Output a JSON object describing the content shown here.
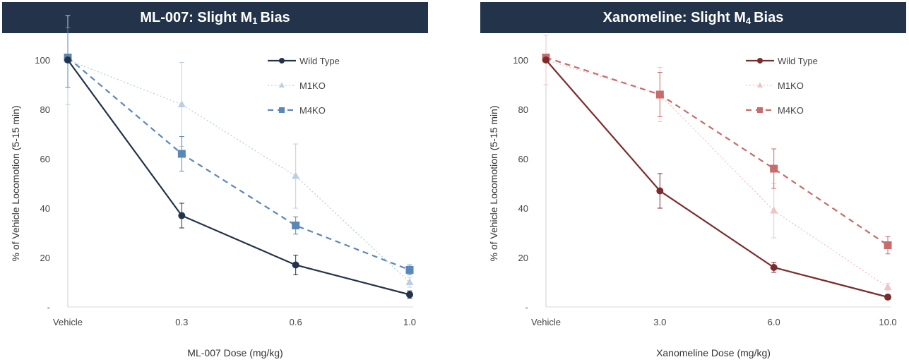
{
  "chart_data": [
    {
      "type": "line",
      "title_main": "ML-007: Slight M",
      "title_sub": "1",
      "title_tail": "Bias",
      "xlabel": "ML-007 Dose (mg/kg)",
      "ylabel": "% of Vehicle Locomotion (5-15 min)",
      "categories": [
        "Vehicle",
        "0.3",
        "0.6",
        "1.0"
      ],
      "ylim": [
        0,
        100
      ],
      "yticks": [
        "-",
        "20",
        "40",
        "60",
        "80",
        "100"
      ],
      "series": [
        {
          "name": "Wild Type",
          "values": [
            100,
            37,
            17,
            5
          ],
          "errors": [
            0,
            5,
            4,
            1.5
          ],
          "color": "#22334a",
          "dash": "",
          "width": 2.2,
          "marker": "circle"
        },
        {
          "name": "M1KO",
          "values": [
            100,
            82,
            53,
            10
          ],
          "errors": [
            18,
            17,
            13,
            2
          ],
          "color": "#bccfe2",
          "dash": "2,3",
          "width": 1.3,
          "marker": "triangle"
        },
        {
          "name": "M4KO",
          "values": [
            101,
            62,
            33,
            15
          ],
          "errors": [
            12,
            7,
            3.5,
            2
          ],
          "color": "#5b86b8",
          "dash": "8,6",
          "width": 2.2,
          "marker": "square"
        }
      ]
    },
    {
      "type": "line",
      "title_main": "Xanomeline: Slight M",
      "title_sub": "4",
      "title_tail": "Bias",
      "xlabel": "Xanomeline Dose (mg/kg)",
      "ylabel": "% of Vehicle Locomotion (5-15 min)",
      "categories": [
        "Vehicle",
        "3.0",
        "6.0",
        "10.0"
      ],
      "ylim": [
        0,
        100
      ],
      "yticks": [
        "-",
        "20",
        "40",
        "60",
        "80",
        "100"
      ],
      "series": [
        {
          "name": "Wild Type",
          "values": [
            100,
            47,
            16,
            4
          ],
          "errors": [
            0,
            7,
            2,
            1
          ],
          "color": "#7b2b2b",
          "dash": "",
          "width": 2.2,
          "marker": "circle"
        },
        {
          "name": "M1KO",
          "values": [
            100,
            86,
            39,
            8
          ],
          "errors": [
            10,
            11,
            11,
            1.5
          ],
          "color": "#efc4c4",
          "dash": "2,3",
          "width": 1.3,
          "marker": "triangle"
        },
        {
          "name": "M4KO",
          "values": [
            101,
            86,
            56,
            25
          ],
          "errors": [
            0,
            9,
            8,
            3.5
          ],
          "color": "#c86b6b",
          "dash": "8,6",
          "width": 2.2,
          "marker": "square"
        }
      ]
    }
  ]
}
